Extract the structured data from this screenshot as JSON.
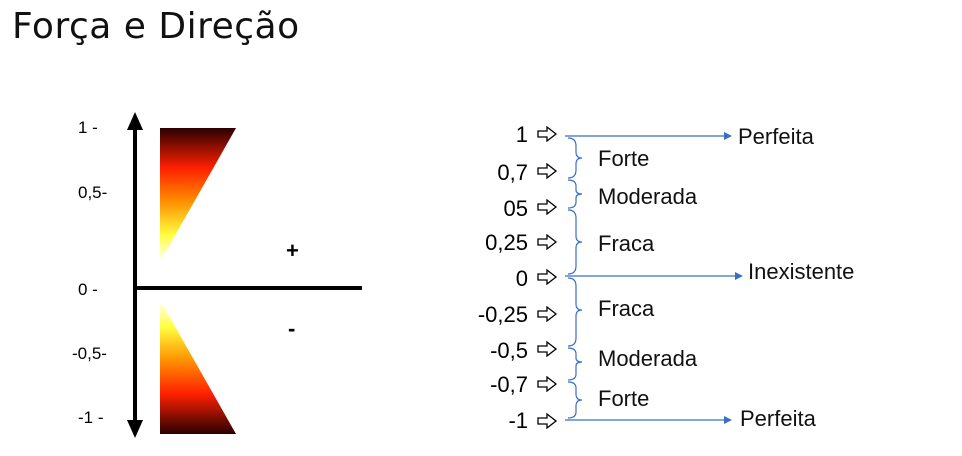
{
  "title": "Força e Direção",
  "left_diagram": {
    "ticks": [
      {
        "label": "1  -",
        "value": 1
      },
      {
        "label": "0,5-",
        "value": 0.5
      },
      {
        "label": "0  -",
        "value": 0
      },
      {
        "label": "-0,5-",
        "value": -0.5
      },
      {
        "label": "-1  -",
        "value": -1
      }
    ],
    "positive_sign": "+",
    "negative_sign": "-",
    "gradient_colors": {
      "dark": "#2a0000",
      "mid": "#ff2000",
      "orange": "#ff9000",
      "light": "#ffff40",
      "fade": "#ffffff"
    }
  },
  "right_diagram": {
    "levels": [
      "1",
      "0,7",
      "05",
      "0,25",
      "0",
      "-0,25",
      "-0,5",
      "-0,7",
      "-1"
    ],
    "categories": {
      "perfeita_top": "Perfeita",
      "forte_top": "Forte",
      "moderada_top": "Moderada",
      "fraca_top": "Fraca",
      "inexistente": "Inexistente",
      "fraca_bottom": "Fraca",
      "moderada_bottom": "Moderada",
      "forte_bottom": "Forte",
      "perfeita_bottom": "Perfeita"
    },
    "connector_color": "#3a6fc4",
    "arrow_glyph": "open-right-arrow-icon"
  }
}
